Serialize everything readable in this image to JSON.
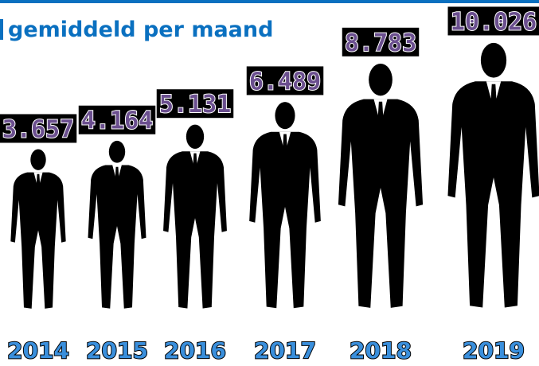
{
  "chart_data": {
    "type": "bar",
    "title": "gemiddeld per maand",
    "categories": [
      "2014",
      "2015",
      "2016",
      "2017",
      "2018",
      "2019"
    ],
    "values": [
      3657,
      4164,
      5131,
      6489,
      8783,
      10026
    ],
    "value_labels": [
      "3.657",
      "4.164",
      "5.131",
      "6.489",
      "8.783",
      "10.026"
    ],
    "color": "#000000"
  }
}
